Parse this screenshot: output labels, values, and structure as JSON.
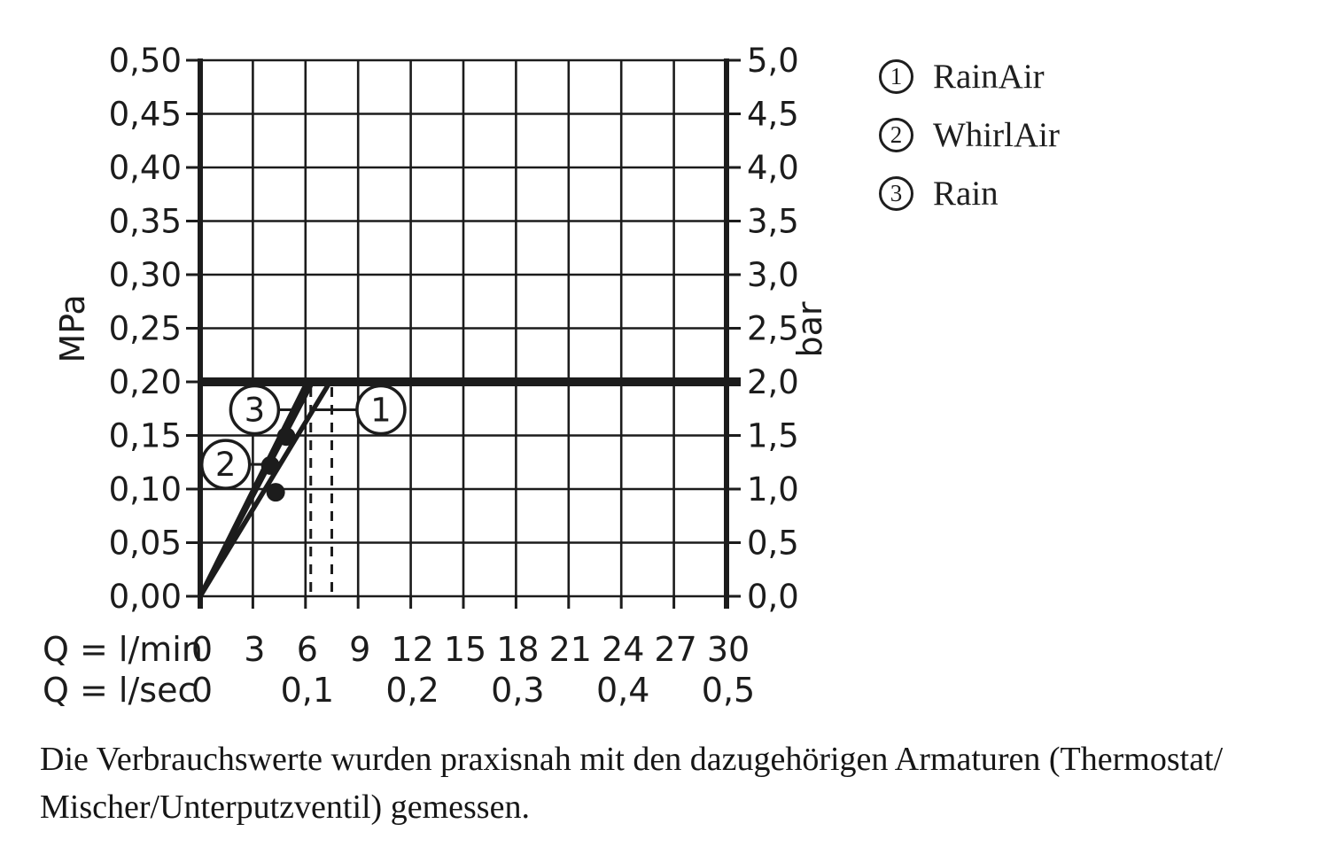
{
  "colors": {
    "ink": "#1c1c1c",
    "background": "#ffffff"
  },
  "chart_data": {
    "type": "line",
    "title": "",
    "y_left": {
      "label": "MPa",
      "min": 0,
      "max": 0.5,
      "step": 0.05,
      "tick_labels": [
        "0,50",
        "0,45",
        "0,40",
        "0,35",
        "0,30",
        "0,25",
        "0,20",
        "0,15",
        "0,10",
        "0,05",
        "0,00"
      ]
    },
    "y_right": {
      "label": "bar",
      "min": 0,
      "max": 5,
      "step": 0.5,
      "tick_labels": [
        "5,0",
        "4,5",
        "4,0",
        "3,5",
        "3,0",
        "2,5",
        "2,0",
        "1,5",
        "1,0",
        "0,5",
        "0,0"
      ]
    },
    "x_lmin": {
      "label": "Q = l/min",
      "ticks": [
        0,
        3,
        6,
        9,
        12,
        15,
        18,
        21,
        24,
        27,
        30
      ],
      "tick_labels": [
        "0",
        "3",
        "6",
        "9",
        "12",
        "15",
        "18",
        "21",
        "24",
        "27",
        "30"
      ]
    },
    "x_lsec": {
      "label": "Q = l/sec",
      "ticks": [
        0,
        6,
        12,
        18,
        24,
        30
      ],
      "tick_labels": [
        "0",
        "0,1",
        "0,2",
        "0,3",
        "0,4",
        "0,5"
      ]
    },
    "xlim": [
      0,
      30
    ],
    "ylim_mpa": [
      0,
      0.5
    ],
    "grid": true,
    "pressure_limit_mpa": 0.2,
    "curves": [
      {
        "id": "1",
        "name": "RainAir",
        "points": [
          [
            0,
            0
          ],
          [
            7.4,
            0.2
          ]
        ]
      },
      {
        "id": "2",
        "name": "WhirlAir",
        "points": [
          [
            0,
            0
          ],
          [
            6.4,
            0.2
          ]
        ]
      },
      {
        "id": "3",
        "name": "Rain",
        "points": [
          [
            0,
            0
          ],
          [
            6.1,
            0.2
          ]
        ]
      }
    ],
    "measure_dots": [
      {
        "x": 4.9,
        "y": 0.149
      },
      {
        "x": 4.0,
        "y": 0.122
      },
      {
        "x": 4.3,
        "y": 0.097
      }
    ],
    "dashed_guides_x": [
      6.3,
      7.5
    ],
    "callouts": [
      {
        "label": "1",
        "x": 10.3,
        "y": 0.174,
        "leader_to_x": 6.45
      },
      {
        "label": "2",
        "x": 1.45,
        "y": 0.123,
        "leader_to_x": 4.0
      },
      {
        "label": "3",
        "x": 3.1,
        "y": 0.174,
        "leader_to_x": 5.3
      }
    ]
  },
  "legend": {
    "items": [
      {
        "num": "1",
        "name": "RainAir"
      },
      {
        "num": "2",
        "name": "WhirlAir"
      },
      {
        "num": "3",
        "name": "Rain"
      }
    ]
  },
  "footer": {
    "line1": "Die Verbrauchswerte wurden praxisnah mit den dazugehörigen Armaturen (Thermostat/",
    "line2": "Mischer/Unterputzventil) gemessen."
  }
}
